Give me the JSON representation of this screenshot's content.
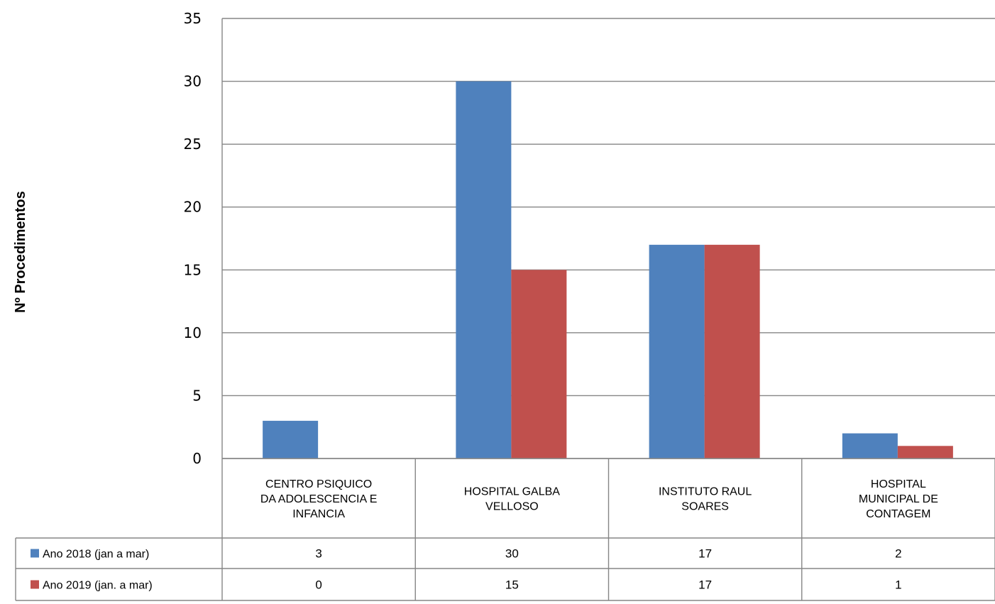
{
  "chart_data": {
    "type": "bar",
    "title": "",
    "xlabel": "",
    "ylabel": "Nº Procedimentos",
    "ylim": [
      0,
      35
    ],
    "yticks": [
      0,
      5,
      10,
      15,
      20,
      25,
      30,
      35
    ],
    "grid": true,
    "legend": "data-table",
    "categories": [
      [
        "CENTRO PSIQUICO",
        "DA ADOLESCENCIA E",
        "INFANCIA"
      ],
      [
        "HOSPITAL GALBA",
        "VELLOSO"
      ],
      [
        "INSTITUTO RAUL",
        "SOARES"
      ],
      [
        "HOSPITAL",
        "MUNICIPAL DE",
        "CONTAGEM"
      ]
    ],
    "series": [
      {
        "name": "Ano 2018 (jan a mar)",
        "color": "#4F81BD",
        "values": [
          3,
          30,
          17,
          2
        ]
      },
      {
        "name": "Ano 2019 (jan. a mar)",
        "color": "#C0504D",
        "values": [
          0,
          15,
          17,
          1
        ]
      }
    ]
  }
}
